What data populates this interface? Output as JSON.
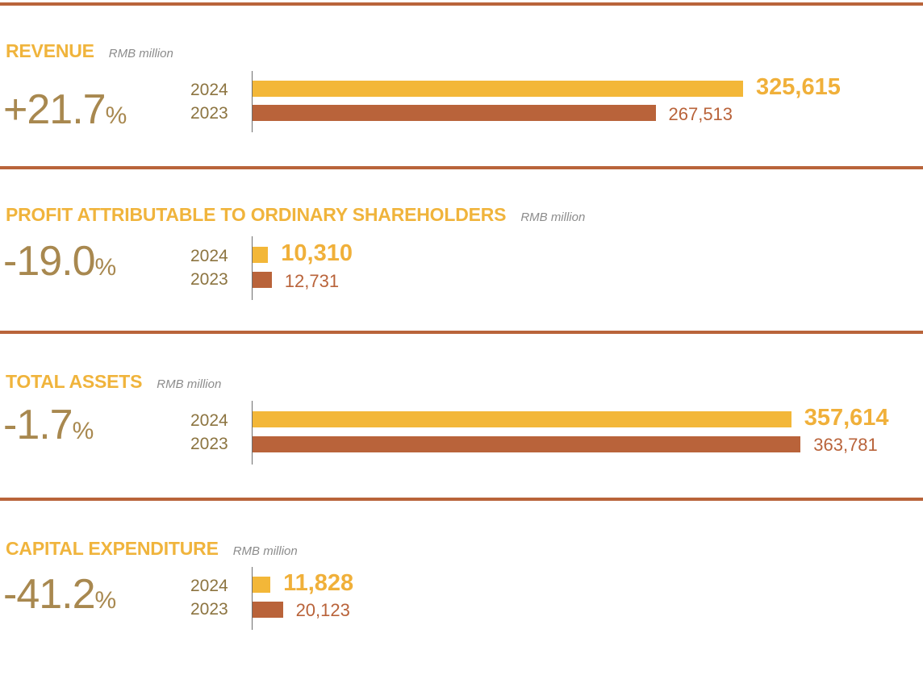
{
  "chart_data": [
    {
      "type": "bar",
      "title": "REVENUE",
      "subtitle": "RMB million",
      "change": "+21.7",
      "change_unit": "%",
      "categories": [
        "2024",
        "2023"
      ],
      "values": [
        325615,
        267513
      ],
      "labels": [
        "325,615",
        "267,513"
      ],
      "colors": [
        "#f3b738",
        "#b9633a"
      ]
    },
    {
      "type": "bar",
      "title": "PROFIT ATTRIBUTABLE TO ORDINARY SHAREHOLDERS",
      "subtitle": "RMB million",
      "change": "-19.0",
      "change_unit": "%",
      "categories": [
        "2024",
        "2023"
      ],
      "values": [
        10310,
        12731
      ],
      "labels": [
        "10,310",
        "12,731"
      ],
      "colors": [
        "#f3b738",
        "#b9633a"
      ]
    },
    {
      "type": "bar",
      "title": "TOTAL ASSETS",
      "subtitle": "RMB million",
      "change": "-1.7",
      "change_unit": "%",
      "categories": [
        "2024",
        "2023"
      ],
      "values": [
        357614,
        363781
      ],
      "labels": [
        "357,614",
        "363,781"
      ],
      "colors": [
        "#f3b738",
        "#b9633a"
      ]
    },
    {
      "type": "bar",
      "title": "CAPITAL EXPENDITURE",
      "subtitle": "RMB million",
      "change": "-41.2",
      "change_unit": "%",
      "categories": [
        "2024",
        "2023"
      ],
      "values": [
        11828,
        20123
      ],
      "labels": [
        "11,828",
        "20,123"
      ],
      "colors": [
        "#f3b738",
        "#b9633a"
      ]
    }
  ]
}
